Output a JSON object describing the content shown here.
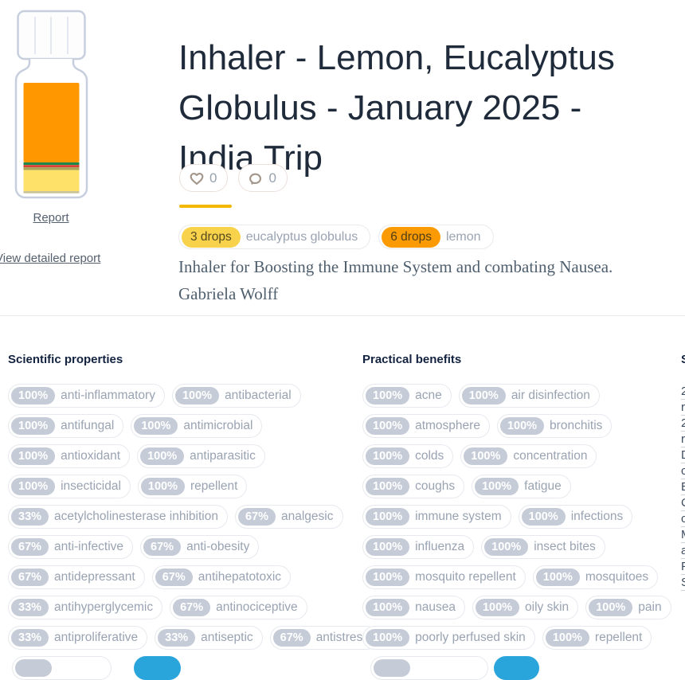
{
  "title": {
    "full": "Inhaler - Lemon, Eucalyptus Globulus - January 2025 - India Trip",
    "lines": [
      "Inhaler - Lemon, Eucalyptus",
      "Globulus - January 2025 -",
      "India Trip"
    ]
  },
  "social": {
    "likes": "0",
    "comments": "0"
  },
  "left_rail": {
    "report_label": "Report",
    "view_detailed_label": "View detailed report"
  },
  "ingredients": [
    {
      "amount": "3 drops",
      "name": "eucalyptus globulus",
      "badge_color": "#f8d24b"
    },
    {
      "amount": "6 drops",
      "name": "lemon",
      "badge_color": "#fb9a02"
    }
  ],
  "description": {
    "lines": [
      "Inhaler for Boosting the Immune System and combating Nausea.",
      "Gabriela Wolff"
    ]
  },
  "bottle": {
    "layers": [
      {
        "name": "liquid-orange",
        "color": "#ff9800"
      },
      {
        "name": "stripe-green",
        "color": "#1d8649"
      },
      {
        "name": "stripe-red",
        "color": "#d84136"
      },
      {
        "name": "stripe-olive",
        "color": "#a8a356"
      },
      {
        "name": "liquid-yellow",
        "color": "#fde169"
      },
      {
        "name": "base-line",
        "color": "#c9c096"
      }
    ]
  },
  "properties": {
    "scientific": {
      "heading": "Scientific properties",
      "rows": [
        [
          {
            "pct": "100%",
            "label": "anti-inflammatory"
          },
          {
            "pct": "100%",
            "label": "antibacterial"
          }
        ],
        [
          {
            "pct": "100%",
            "label": "antifungal"
          },
          {
            "pct": "100%",
            "label": "antimicrobial"
          }
        ],
        [
          {
            "pct": "100%",
            "label": "antioxidant"
          },
          {
            "pct": "100%",
            "label": "antiparasitic"
          }
        ],
        [
          {
            "pct": "100%",
            "label": "insecticidal"
          },
          {
            "pct": "100%",
            "label": "repellent"
          }
        ],
        [
          {
            "pct": "33%",
            "label": "acetylcholinesterase inhibition"
          },
          {
            "pct": "67%",
            "label": "analgesic"
          }
        ],
        [
          {
            "pct": "67%",
            "label": "anti-infective"
          },
          {
            "pct": "67%",
            "label": "anti-obesity"
          }
        ],
        [
          {
            "pct": "67%",
            "label": "antidepressant"
          },
          {
            "pct": "67%",
            "label": "antihepatotoxic"
          }
        ],
        [
          {
            "pct": "33%",
            "label": "antihyperglycemic"
          },
          {
            "pct": "67%",
            "label": "antinociceptive"
          }
        ],
        [
          {
            "pct": "33%",
            "label": "antiproliferative"
          },
          {
            "pct": "33%",
            "label": "antiseptic"
          },
          {
            "pct": "67%",
            "label": "antistress"
          }
        ]
      ]
    },
    "practical": {
      "heading": "Practical benefits",
      "rows": [
        [
          {
            "pct": "100%",
            "label": "acne"
          },
          {
            "pct": "100%",
            "label": "air disinfection"
          }
        ],
        [
          {
            "pct": "100%",
            "label": "atmosphere"
          },
          {
            "pct": "100%",
            "label": "bronchitis"
          }
        ],
        [
          {
            "pct": "100%",
            "label": "colds"
          },
          {
            "pct": "100%",
            "label": "concentration"
          }
        ],
        [
          {
            "pct": "100%",
            "label": "coughs"
          },
          {
            "pct": "100%",
            "label": "fatigue"
          }
        ],
        [
          {
            "pct": "100%",
            "label": "immune system"
          },
          {
            "pct": "100%",
            "label": "infections"
          }
        ],
        [
          {
            "pct": "100%",
            "label": "influenza"
          },
          {
            "pct": "100%",
            "label": "insect bites"
          }
        ],
        [
          {
            "pct": "100%",
            "label": "mosquito repellent"
          },
          {
            "pct": "100%",
            "label": "mosquitoes"
          }
        ],
        [
          {
            "pct": "100%",
            "label": "nausea"
          },
          {
            "pct": "100%",
            "label": "oily skin"
          },
          {
            "pct": "100%",
            "label": "pain"
          }
        ],
        [
          {
            "pct": "100%",
            "label": "poorly perfused skin"
          },
          {
            "pct": "100%",
            "label": "repellent"
          }
        ]
      ]
    },
    "studies_partial": {
      "heading_fragment": "S",
      "line_fragments": [
        "2",
        "r",
        "2",
        "r",
        "D",
        "c",
        "E",
        "C",
        "c",
        "M",
        "a",
        "P",
        "S"
      ]
    }
  },
  "colors": {
    "accent_yellow": "#f4b800",
    "badge_gray": "#c5cbd7",
    "pill_text": "#99a3b2",
    "heading_navy": "#13233f",
    "title_navy": "#1f2b3a",
    "icon_taupe": "#a3968b",
    "selected_blue": "#2aa5dc"
  }
}
